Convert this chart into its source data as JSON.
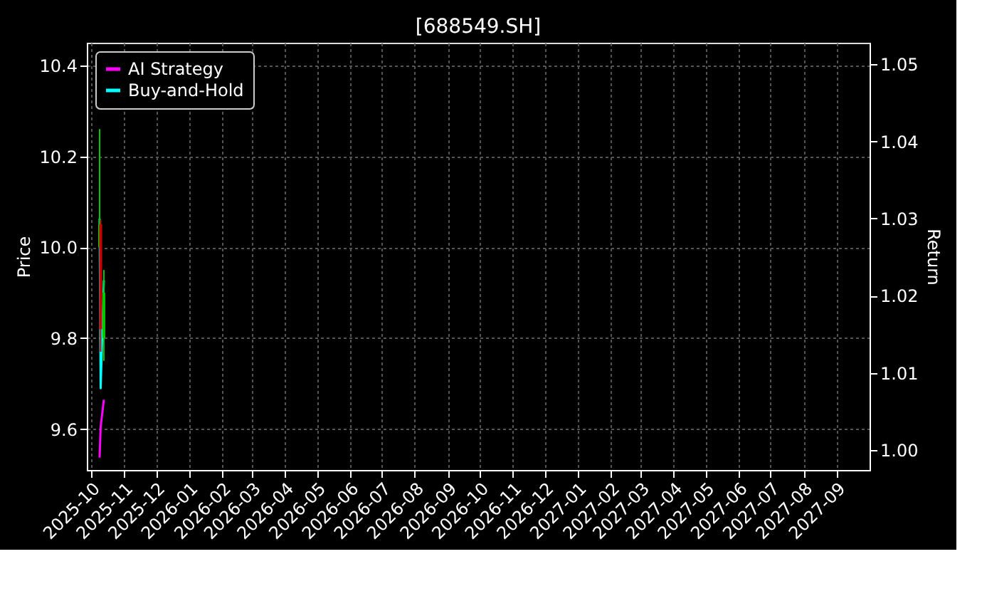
{
  "chart_data": {
    "type": "candlestick",
    "title": "[688549.SH]",
    "ylabel": "Price",
    "y2label": "Return",
    "x": [
      "2025-10-09",
      "2025-10-10",
      "2025-10-13"
    ],
    "ohlc": [
      [
        10.0,
        10.26,
        10.0,
        10.05
      ],
      [
        10.05,
        10.06,
        9.77,
        9.82
      ],
      [
        9.8,
        9.95,
        9.75,
        9.9
      ]
    ],
    "series": [
      {
        "name": "AI Strategy",
        "type": "line",
        "axis": "y2",
        "color": "#ff00ff",
        "x": [
          "2025-10-09",
          "2025-10-10",
          "2025-10-13"
        ],
        "values": [
          0.999,
          1.003,
          1.0065
        ]
      },
      {
        "name": "Buy-and-Hold",
        "type": "line",
        "axis": "y2",
        "color": "#00ffff",
        "x": [
          "2025-10-09",
          "2025-10-10",
          "2025-10-13"
        ],
        "values": [
          1.03,
          1.008,
          1.022
        ]
      }
    ],
    "xlim": [
      "2025-09-27",
      "2027-10-02"
    ],
    "xticks": [
      "2025-10",
      "2025-11",
      "2025-12",
      "2026-01",
      "2026-02",
      "2026-03",
      "2026-04",
      "2026-05",
      "2026-06",
      "2026-07",
      "2026-08",
      "2026-09",
      "2026-10",
      "2026-11",
      "2026-12",
      "2027-01",
      "2027-02",
      "2027-03",
      "2027-04",
      "2027-05",
      "2027-06",
      "2027-07",
      "2027-08",
      "2027-09"
    ],
    "ylim": [
      9.51,
      10.45
    ],
    "yticks": [
      9.6,
      9.8,
      {
        "value": 10,
        "label": "10.0"
      },
      10.2,
      10.4
    ],
    "y2lim": [
      0.9974,
      1.0528
    ],
    "y2ticks": [
      {
        "value": 1,
        "label": "1.00"
      },
      1.01,
      1.02,
      1.03,
      1.04,
      1.05
    ],
    "grid": true,
    "legend": "top left"
  }
}
